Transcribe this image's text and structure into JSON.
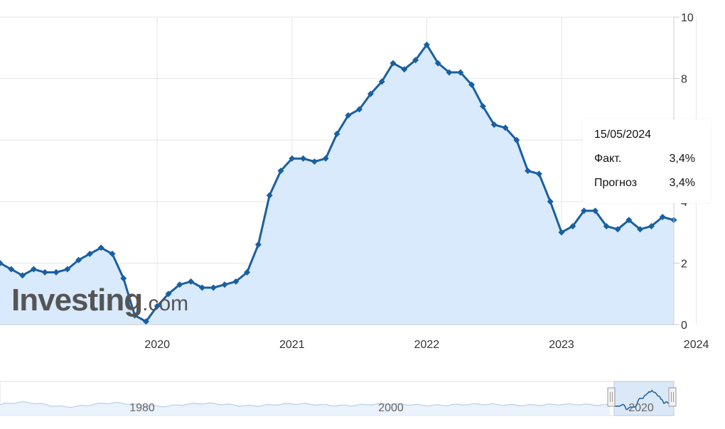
{
  "chart_data": {
    "type": "area",
    "y_axis": {
      "position": "right",
      "range": [
        0,
        10
      ],
      "ticks": [
        "10",
        "8",
        "4",
        "2",
        "0"
      ]
    },
    "x_axis": {
      "range": [
        "2019-05",
        "2024-05"
      ],
      "tick_labels": [
        "2020",
        "2021",
        "2022",
        "2023",
        "2024"
      ]
    },
    "grid": true,
    "series": [
      {
        "color": "#1a5fa0",
        "fill": "#d9eafc",
        "points": [
          [
            "2019-05",
            2.0
          ],
          [
            "2019-06",
            1.8
          ],
          [
            "2019-07",
            1.6
          ],
          [
            "2019-08",
            1.8
          ],
          [
            "2019-09",
            1.7
          ],
          [
            "2019-10",
            1.7
          ],
          [
            "2019-11",
            1.8
          ],
          [
            "2019-12",
            2.1
          ],
          [
            "2020-01",
            2.3
          ],
          [
            "2020-02",
            2.5
          ],
          [
            "2020-03",
            2.3
          ],
          [
            "2020-04",
            1.5
          ],
          [
            "2020-05",
            0.3
          ],
          [
            "2020-06",
            0.1
          ],
          [
            "2020-07",
            0.6
          ],
          [
            "2020-08",
            1.0
          ],
          [
            "2020-09",
            1.3
          ],
          [
            "2020-10",
            1.4
          ],
          [
            "2020-11",
            1.2
          ],
          [
            "2020-12",
            1.2
          ],
          [
            "2021-01",
            1.3
          ],
          [
            "2021-02",
            1.4
          ],
          [
            "2021-03",
            1.7
          ],
          [
            "2021-04",
            2.6
          ],
          [
            "2021-05",
            4.2
          ],
          [
            "2021-06",
            5.0
          ],
          [
            "2021-07",
            5.4
          ],
          [
            "2021-08",
            5.4
          ],
          [
            "2021-09",
            5.3
          ],
          [
            "2021-10",
            5.4
          ],
          [
            "2021-11",
            6.2
          ],
          [
            "2021-12",
            6.8
          ],
          [
            "2022-01",
            7.0
          ],
          [
            "2022-02",
            7.5
          ],
          [
            "2022-03",
            7.9
          ],
          [
            "2022-04",
            8.5
          ],
          [
            "2022-05",
            8.3
          ],
          [
            "2022-06",
            8.6
          ],
          [
            "2022-07",
            9.1
          ],
          [
            "2022-08",
            8.5
          ],
          [
            "2022-09",
            8.2
          ],
          [
            "2022-10",
            8.2
          ],
          [
            "2022-11",
            7.8
          ],
          [
            "2022-12",
            7.1
          ],
          [
            "2023-01",
            6.5
          ],
          [
            "2023-02",
            6.4
          ],
          [
            "2023-03",
            6.0
          ],
          [
            "2023-04",
            5.0
          ],
          [
            "2023-05",
            4.9
          ],
          [
            "2023-06",
            4.0
          ],
          [
            "2023-07",
            3.0
          ],
          [
            "2023-08",
            3.2
          ],
          [
            "2023-09",
            3.7
          ],
          [
            "2023-10",
            3.7
          ],
          [
            "2023-11",
            3.2
          ],
          [
            "2023-12",
            3.1
          ],
          [
            "2024-01",
            3.4
          ],
          [
            "2024-02",
            3.1
          ],
          [
            "2024-03",
            3.2
          ],
          [
            "2024-04",
            3.5
          ],
          [
            "2024-05",
            3.4
          ]
        ]
      }
    ],
    "tooltip": {
      "date": "15/05/2024",
      "rows": [
        {
          "label": "Факт.",
          "value": "3,4%"
        },
        {
          "label": "Прогноз",
          "value": "3,4%"
        }
      ]
    },
    "navigator": {
      "labels": [
        "1980",
        "2000",
        "2020"
      ]
    }
  },
  "watermark": {
    "text": "Investing",
    "suffix": ".com"
  }
}
